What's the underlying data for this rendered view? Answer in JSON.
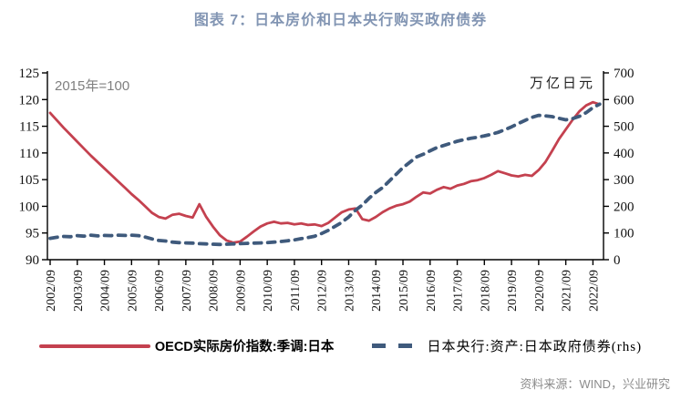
{
  "title": "图表 7：日本房价和日本央行购买政府债券",
  "source": "资料来源：WIND，兴业研究",
  "annotations": {
    "left_unit": "2015年=100",
    "right_unit": "万亿日元"
  },
  "colors": {
    "title": "#8295B3",
    "house_price_line": "#C4414F",
    "boj_line": "#3F5A7C",
    "axis": "#000000",
    "annotation_gray": "#7f7f7f"
  },
  "chart_data": {
    "type": "line",
    "grid": false,
    "legend_position": "bottom",
    "left_axis": {
      "label": "2015年=100",
      "min": 90,
      "max": 125,
      "ticks": [
        90,
        95,
        100,
        105,
        110,
        115,
        120,
        125
      ]
    },
    "right_axis": {
      "label": "万亿日元",
      "min": 0,
      "max": 700,
      "ticks": [
        0,
        100,
        200,
        300,
        400,
        500,
        600,
        700
      ]
    },
    "x_tick_labels": [
      "2002/09",
      "2003/09",
      "2004/09",
      "2005/09",
      "2006/09",
      "2007/09",
      "2008/09",
      "2009/09",
      "2010/09",
      "2011/09",
      "2012/09",
      "2013/09",
      "2014/09",
      "2015/09",
      "2016/09",
      "2017/09",
      "2018/09",
      "2019/09",
      "2020/09",
      "2021/09",
      "2022/09"
    ],
    "x_frequency": "quarterly",
    "x_start": "2002/09",
    "x_end": "2022/12",
    "series": [
      {
        "name": "OECD实际房价指数:季调:日本",
        "axis": "left",
        "style": "solid",
        "color": "#C4414F",
        "values": [
          117.5,
          116.1,
          114.7,
          113.4,
          112.1,
          110.8,
          109.5,
          108.3,
          107.1,
          105.9,
          104.7,
          103.5,
          102.3,
          101.2,
          100.0,
          98.8,
          98.0,
          97.7,
          98.4,
          98.6,
          98.2,
          97.9,
          100.4,
          98.0,
          96.2,
          94.6,
          93.6,
          93.2,
          93.4,
          94.3,
          95.3,
          96.2,
          96.8,
          97.1,
          96.8,
          96.9,
          96.6,
          96.8,
          96.5,
          96.6,
          96.3,
          96.9,
          97.9,
          98.9,
          99.4,
          99.6,
          97.6,
          97.3,
          98.0,
          98.9,
          99.6,
          100.1,
          100.4,
          100.9,
          101.8,
          102.6,
          102.4,
          103.1,
          103.6,
          103.3,
          103.9,
          104.2,
          104.7,
          104.9,
          105.3,
          105.9,
          106.6,
          106.2,
          105.8,
          105.6,
          105.9,
          105.7,
          106.8,
          108.3,
          110.4,
          112.6,
          114.4,
          116.2,
          117.8,
          118.9,
          119.5,
          119.1
        ]
      },
      {
        "name": "日本央行:资产:日本政府债券(rhs)",
        "axis": "right",
        "style": "dashed",
        "color": "#3F5A7C",
        "values": [
          80,
          84,
          87,
          86,
          90,
          88,
          92,
          89,
          91,
          90,
          92,
          91,
          92,
          90,
          85,
          78,
          72,
          70,
          66,
          64,
          63,
          62,
          60,
          59,
          58,
          57,
          58,
          59,
          60,
          61,
          62,
          63,
          64,
          66,
          68,
          71,
          74,
          79,
          83,
          88,
          98,
          110,
          125,
          140,
          160,
          185,
          205,
          230,
          252,
          270,
          295,
          320,
          345,
          365,
          385,
          395,
          408,
          420,
          428,
          436,
          444,
          450,
          455,
          459,
          464,
          470,
          477,
          487,
          498,
          510,
          522,
          533,
          541,
          539,
          536,
          530,
          524,
          529,
          537,
          551,
          570,
          583
        ]
      }
    ]
  }
}
